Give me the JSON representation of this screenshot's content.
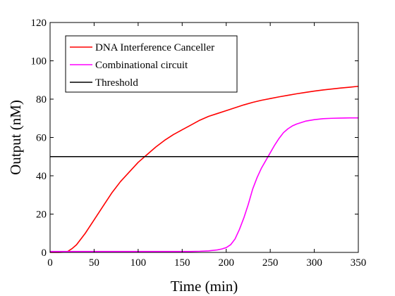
{
  "chart_data": {
    "type": "line",
    "xlabel": "Time (min)",
    "ylabel": "Output (nM)",
    "xlim": [
      0,
      350
    ],
    "ylim": [
      0,
      120
    ],
    "xticks": [
      0,
      50,
      100,
      150,
      200,
      250,
      300,
      350
    ],
    "yticks": [
      0,
      20,
      40,
      60,
      80,
      100,
      120
    ],
    "grid": false,
    "legend_position": "top-left",
    "series": [
      {
        "name": "DNA Interference Canceller",
        "color": "#ff0000",
        "x": [
          0,
          10,
          15,
          20,
          25,
          30,
          40,
          50,
          60,
          70,
          80,
          90,
          100,
          110,
          120,
          130,
          140,
          150,
          160,
          170,
          180,
          190,
          200,
          210,
          220,
          230,
          240,
          250,
          260,
          270,
          280,
          290,
          300,
          310,
          320,
          330,
          340,
          350
        ],
        "y": [
          0,
          0,
          0.1,
          0.5,
          2,
          4,
          10,
          17,
          24,
          31,
          37,
          42,
          47,
          51,
          55,
          58.5,
          61.5,
          64,
          66.5,
          69,
          71,
          72.5,
          74,
          75.5,
          77,
          78.3,
          79.4,
          80.3,
          81.2,
          82,
          82.8,
          83.5,
          84.2,
          84.8,
          85.3,
          85.8,
          86.2,
          86.7
        ]
      },
      {
        "name": "Combinational circuit",
        "color": "#ff00ff",
        "x": [
          0,
          50,
          100,
          150,
          160,
          170,
          180,
          190,
          195,
          200,
          205,
          210,
          215,
          220,
          225,
          230,
          235,
          240,
          245,
          250,
          255,
          260,
          265,
          270,
          275,
          280,
          290,
          300,
          310,
          320,
          330,
          340,
          350
        ],
        "y": [
          0.5,
          0.5,
          0.5,
          0.5,
          0.5,
          0.6,
          0.8,
          1.3,
          1.8,
          2.5,
          4,
          7,
          12,
          18,
          25,
          33,
          39,
          44,
          48,
          52,
          56,
          59.5,
          62.5,
          64.5,
          66,
          67,
          68.5,
          69.3,
          69.8,
          70,
          70.1,
          70.2,
          70.2
        ]
      },
      {
        "name": "Threshold",
        "color": "#000000",
        "x": [
          0,
          350
        ],
        "y": [
          50,
          50
        ]
      }
    ]
  }
}
